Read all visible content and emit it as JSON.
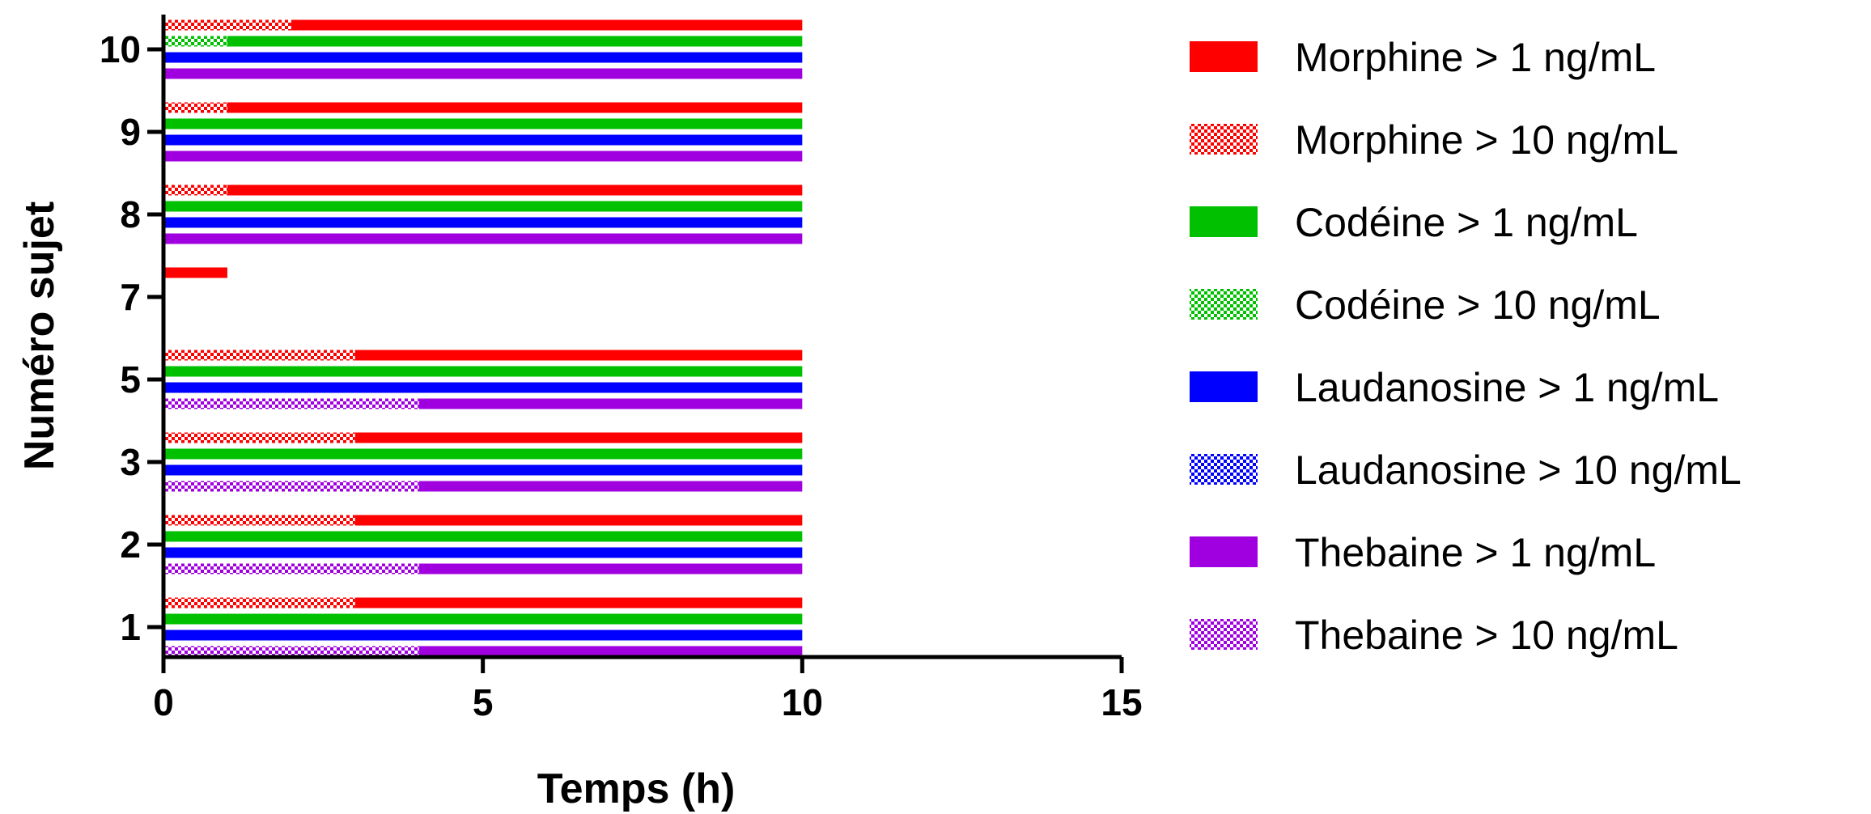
{
  "chart_data": {
    "type": "bar",
    "orientation": "horizontal",
    "stacked_segments": true,
    "xlabel": "Temps (h)",
    "ylabel": "Numéro sujet",
    "xlim": [
      0,
      15
    ],
    "xticks": [
      "0",
      "5",
      "10",
      "15"
    ],
    "categories": [
      "1",
      "2",
      "3",
      "5",
      "7",
      "8",
      "9",
      "10"
    ],
    "grid": false,
    "legend_placement": "right",
    "colors": {
      "morphine": "#ff0000",
      "codeine": "#00c000",
      "laudanosine": "#0000ff",
      "thebaine": "#a000e0"
    },
    "legend": [
      {
        "label": "Morphine > 1 ng/mL",
        "color": "morphine",
        "pattern": "solid"
      },
      {
        "label": "Morphine > 10 ng/mL",
        "color": "morphine",
        "pattern": "checker"
      },
      {
        "label": "Codéine > 1 ng/mL",
        "color": "codeine",
        "pattern": "solid"
      },
      {
        "label": "Codéine > 10 ng/mL",
        "color": "codeine",
        "pattern": "checker"
      },
      {
        "label": "Laudanosine > 1 ng/mL",
        "color": "laudanosine",
        "pattern": "solid"
      },
      {
        "label": "Laudanosine > 10 ng/mL",
        "color": "laudanosine",
        "pattern": "checker"
      },
      {
        "label": "Thebaine > 1 ng/mL",
        "color": "thebaine",
        "pattern": "solid"
      },
      {
        "label": "Thebaine > 10 ng/mL",
        "color": "thebaine",
        "pattern": "checker"
      }
    ],
    "subjects": [
      {
        "id": "1",
        "bars": [
          {
            "compound": "morphine",
            "above10_h": 3,
            "above1_h": 10
          },
          {
            "compound": "codeine",
            "above10_h": 0,
            "above1_h": 10
          },
          {
            "compound": "laudanosine",
            "above10_h": 0,
            "above1_h": 10
          },
          {
            "compound": "thebaine",
            "above10_h": 4,
            "above1_h": 10
          }
        ]
      },
      {
        "id": "2",
        "bars": [
          {
            "compound": "morphine",
            "above10_h": 3,
            "above1_h": 10
          },
          {
            "compound": "codeine",
            "above10_h": 0,
            "above1_h": 10
          },
          {
            "compound": "laudanosine",
            "above10_h": 0,
            "above1_h": 10
          },
          {
            "compound": "thebaine",
            "above10_h": 4,
            "above1_h": 10
          }
        ]
      },
      {
        "id": "3",
        "bars": [
          {
            "compound": "morphine",
            "above10_h": 3,
            "above1_h": 10
          },
          {
            "compound": "codeine",
            "above10_h": 0,
            "above1_h": 10
          },
          {
            "compound": "laudanosine",
            "above10_h": 0,
            "above1_h": 10
          },
          {
            "compound": "thebaine",
            "above10_h": 4,
            "above1_h": 10
          }
        ]
      },
      {
        "id": "5",
        "bars": [
          {
            "compound": "morphine",
            "above10_h": 3,
            "above1_h": 10
          },
          {
            "compound": "codeine",
            "above10_h": 0,
            "above1_h": 10
          },
          {
            "compound": "laudanosine",
            "above10_h": 0,
            "above1_h": 10
          },
          {
            "compound": "thebaine",
            "above10_h": 4,
            "above1_h": 10
          }
        ]
      },
      {
        "id": "7",
        "bars": [
          {
            "compound": "morphine",
            "above10_h": 0,
            "above1_h": 1
          },
          {
            "compound": "codeine",
            "above10_h": 0,
            "above1_h": 0
          },
          {
            "compound": "laudanosine",
            "above10_h": 0,
            "above1_h": 0
          },
          {
            "compound": "thebaine",
            "above10_h": 0,
            "above1_h": 0
          }
        ]
      },
      {
        "id": "8",
        "bars": [
          {
            "compound": "morphine",
            "above10_h": 1,
            "above1_h": 10
          },
          {
            "compound": "codeine",
            "above10_h": 0,
            "above1_h": 10
          },
          {
            "compound": "laudanosine",
            "above10_h": 0,
            "above1_h": 10
          },
          {
            "compound": "thebaine",
            "above10_h": 0,
            "above1_h": 10
          }
        ]
      },
      {
        "id": "9",
        "bars": [
          {
            "compound": "morphine",
            "above10_h": 1,
            "above1_h": 10
          },
          {
            "compound": "codeine",
            "above10_h": 0,
            "above1_h": 10
          },
          {
            "compound": "laudanosine",
            "above10_h": 0,
            "above1_h": 10
          },
          {
            "compound": "thebaine",
            "above10_h": 0,
            "above1_h": 10
          }
        ]
      },
      {
        "id": "10",
        "bars": [
          {
            "compound": "morphine",
            "above10_h": 2,
            "above1_h": 10
          },
          {
            "compound": "codeine",
            "above10_h": 1,
            "above1_h": 10
          },
          {
            "compound": "laudanosine",
            "above10_h": 0,
            "above1_h": 10
          },
          {
            "compound": "thebaine",
            "above10_h": 0,
            "above1_h": 10
          }
        ]
      }
    ]
  }
}
